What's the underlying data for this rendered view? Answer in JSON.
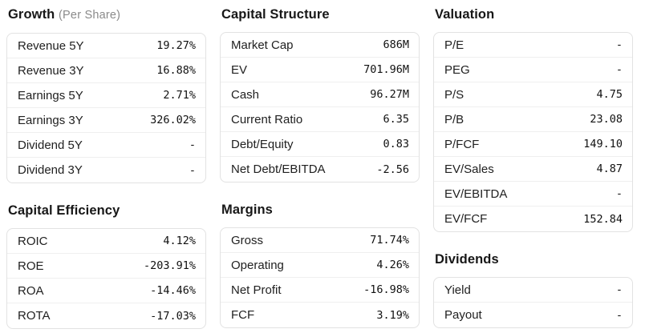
{
  "colors": {
    "background": "#ffffff",
    "card_border": "#e2e2e2",
    "row_separator": "#efefef",
    "title_text": "#171717",
    "title_suffix_text": "#8a8a8a",
    "label_text": "#212121",
    "value_text": "#111111"
  },
  "columns": [
    {
      "sections": [
        {
          "title": "Growth",
          "title_suffix": "(Per Share)",
          "rows": [
            {
              "label": "Revenue 5Y",
              "value": "19.27%"
            },
            {
              "label": "Revenue 3Y",
              "value": "16.88%"
            },
            {
              "label": "Earnings 5Y",
              "value": "2.71%"
            },
            {
              "label": "Earnings 3Y",
              "value": "326.02%"
            },
            {
              "label": "Dividend 5Y",
              "value": "-"
            },
            {
              "label": "Dividend 3Y",
              "value": "-"
            }
          ]
        },
        {
          "title": "Capital Efficiency",
          "rows": [
            {
              "label": "ROIC",
              "value": "4.12%"
            },
            {
              "label": "ROE",
              "value": "-203.91%"
            },
            {
              "label": "ROA",
              "value": "-14.46%"
            },
            {
              "label": "ROTA",
              "value": "-17.03%"
            }
          ]
        }
      ]
    },
    {
      "sections": [
        {
          "title": "Capital Structure",
          "rows": [
            {
              "label": "Market Cap",
              "value": "686M"
            },
            {
              "label": "EV",
              "value": "701.96M"
            },
            {
              "label": "Cash",
              "value": "96.27M"
            },
            {
              "label": "Current Ratio",
              "value": "6.35"
            },
            {
              "label": "Debt/Equity",
              "value": "0.83"
            },
            {
              "label": "Net Debt/EBITDA",
              "value": "-2.56"
            }
          ]
        },
        {
          "title": "Margins",
          "rows": [
            {
              "label": "Gross",
              "value": "71.74%"
            },
            {
              "label": "Operating",
              "value": "4.26%"
            },
            {
              "label": "Net Profit",
              "value": "-16.98%"
            },
            {
              "label": "FCF",
              "value": "3.19%"
            }
          ]
        }
      ]
    },
    {
      "sections": [
        {
          "title": "Valuation",
          "rows": [
            {
              "label": "P/E",
              "value": "-"
            },
            {
              "label": "PEG",
              "value": "-"
            },
            {
              "label": "P/S",
              "value": "4.75"
            },
            {
              "label": "P/B",
              "value": "23.08"
            },
            {
              "label": "P/FCF",
              "value": "149.10"
            },
            {
              "label": "EV/Sales",
              "value": "4.87"
            },
            {
              "label": "EV/EBITDA",
              "value": "-"
            },
            {
              "label": "EV/FCF",
              "value": "152.84"
            }
          ]
        },
        {
          "title": "Dividends",
          "rows": [
            {
              "label": "Yield",
              "value": "-"
            },
            {
              "label": "Payout",
              "value": "-"
            }
          ]
        }
      ]
    }
  ]
}
